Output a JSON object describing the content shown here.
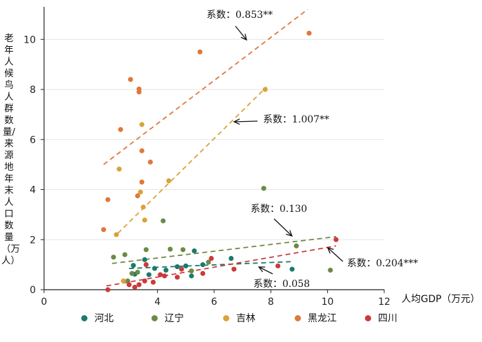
{
  "chart_data": {
    "type": "scatter",
    "xlabel": "人均GDP（万元）",
    "ylabel": "老年人候鸟人群数量/来源地年末人口数量（万人）",
    "xlim": [
      0,
      12
    ],
    "ylim": [
      0,
      11.3
    ],
    "xticks": [
      "0",
      "4",
      "6",
      "8",
      "10",
      "12"
    ],
    "xtick_values": [
      0,
      4,
      6,
      8,
      10,
      12
    ],
    "yticks": [
      "0",
      "2",
      "4",
      "6",
      "8",
      "10"
    ],
    "ytick_values": [
      0,
      2,
      4,
      6,
      8,
      10
    ],
    "grid": "horizontal",
    "legend_position": "bottom",
    "series": [
      {
        "name": "河北",
        "color": "#1b7a6b",
        "points": [
          [
            3.15,
            0.97
          ],
          [
            3.2,
            0.62
          ],
          [
            3.55,
            1.2
          ],
          [
            3.7,
            0.6
          ],
          [
            3.9,
            0.85
          ],
          [
            4.3,
            0.78
          ],
          [
            4.7,
            0.92
          ],
          [
            5.0,
            0.95
          ],
          [
            5.2,
            0.55
          ],
          [
            5.3,
            1.55
          ],
          [
            5.6,
            1.0
          ],
          [
            6.6,
            1.25
          ],
          [
            8.75,
            0.82
          ]
        ],
        "trend": [
          [
            3.0,
            0.85
          ],
          [
            8.7,
            1.12
          ]
        ],
        "trend_label": "系数：0.058"
      },
      {
        "name": "辽宁",
        "color": "#6b8a45",
        "points": [
          [
            2.45,
            1.3
          ],
          [
            2.85,
            1.4
          ],
          [
            2.95,
            0.35
          ],
          [
            3.1,
            0.65
          ],
          [
            3.3,
            0.7
          ],
          [
            3.6,
            1.6
          ],
          [
            4.2,
            2.75
          ],
          [
            4.45,
            1.62
          ],
          [
            4.9,
            1.6
          ],
          [
            5.2,
            0.75
          ],
          [
            5.8,
            1.1
          ],
          [
            7.75,
            4.05
          ],
          [
            8.9,
            1.75
          ],
          [
            10.1,
            0.78
          ]
        ],
        "trend": [
          [
            2.4,
            1.05
          ],
          [
            10.3,
            2.12
          ]
        ],
        "trend_label": "系数：0.130"
      },
      {
        "name": "吉林",
        "color": "#d9a33a",
        "points": [
          [
            2.55,
            2.2
          ],
          [
            2.65,
            4.82
          ],
          [
            2.8,
            0.35
          ],
          [
            3.4,
            3.9
          ],
          [
            3.45,
            6.6
          ],
          [
            3.5,
            3.3
          ],
          [
            3.55,
            2.78
          ],
          [
            4.4,
            4.35
          ],
          [
            7.8,
            8.0
          ]
        ],
        "trend": [
          [
            2.6,
            2.25
          ],
          [
            7.85,
            8.1
          ]
        ],
        "trend_label": "系数：1.007**"
      },
      {
        "name": "黑龙江",
        "color": "#e0783a",
        "points": [
          [
            2.1,
            2.4
          ],
          [
            2.25,
            3.6
          ],
          [
            2.7,
            6.4
          ],
          [
            3.05,
            8.4
          ],
          [
            3.35,
            8.02
          ],
          [
            3.35,
            7.9
          ],
          [
            3.45,
            5.55
          ],
          [
            3.45,
            4.3
          ],
          [
            3.75,
            5.1
          ],
          [
            3.3,
            3.75
          ],
          [
            5.5,
            9.5
          ],
          [
            9.35,
            10.25
          ]
        ],
        "trend": [
          [
            2.1,
            5.0
          ],
          [
            9.3,
            11.2
          ]
        ],
        "trend_label": "系数：0.853**"
      },
      {
        "name": "四川",
        "color": "#cc3a3a",
        "points": [
          [
            2.25,
            0.0
          ],
          [
            3.0,
            0.2
          ],
          [
            3.2,
            0.1
          ],
          [
            3.35,
            0.2
          ],
          [
            3.55,
            0.35
          ],
          [
            3.6,
            1.0
          ],
          [
            3.85,
            0.3
          ],
          [
            4.1,
            0.6
          ],
          [
            4.25,
            0.55
          ],
          [
            4.7,
            0.5
          ],
          [
            4.85,
            0.82
          ],
          [
            5.6,
            0.65
          ],
          [
            5.9,
            1.25
          ],
          [
            6.7,
            0.82
          ],
          [
            8.25,
            0.95
          ],
          [
            10.3,
            2.0
          ]
        ],
        "trend": [
          [
            2.2,
            0.15
          ],
          [
            10.3,
            1.75
          ]
        ],
        "trend_label": "系数：0.204***"
      }
    ]
  }
}
